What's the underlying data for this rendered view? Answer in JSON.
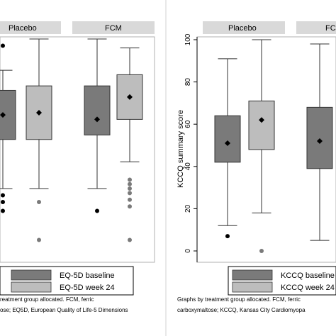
{
  "chart_data": [
    {
      "type": "box",
      "title": "",
      "ylabel": "",
      "panels": [
        "Placebo",
        "FCM"
      ],
      "series": [
        {
          "name": "EQ-5D baseline",
          "color": "#7a7a7a"
        },
        {
          "name": "EQ-5D week 24",
          "color": "#bdbdbd"
        }
      ],
      "boxes": [
        {
          "panel": "Placebo",
          "series": "EQ-5D baseline",
          "min": 0.33,
          "q1": 0.55,
          "median": 0.65,
          "q3": 0.77,
          "max": 0.86,
          "mean": 0.66,
          "outliers": [
            0.97,
            0.3,
            0.27,
            0.23
          ]
        },
        {
          "panel": "Placebo",
          "series": "EQ-5D week 24",
          "min": 0.33,
          "q1": 0.55,
          "median": 0.62,
          "q3": 0.79,
          "max": 1.0,
          "mean": 0.67,
          "outliers": [
            0.27,
            0.1
          ]
        },
        {
          "panel": "FCM",
          "series": "EQ-5D baseline",
          "min": 0.33,
          "q1": 0.57,
          "median": 0.67,
          "q3": 0.79,
          "max": 1.0,
          "mean": 0.64,
          "outliers": [
            0.23
          ]
        },
        {
          "panel": "FCM",
          "series": "EQ-5D week 24",
          "min": 0.45,
          "q1": 0.64,
          "median": 0.76,
          "q3": 0.84,
          "max": 0.96,
          "mean": 0.74,
          "outliers": [
            0.37,
            0.35,
            0.33,
            0.31,
            0.28,
            0.25,
            0.1
          ]
        }
      ],
      "legend": {
        "entries": [
          "EQ-5D baseline",
          "EQ-5D week 24"
        ],
        "position": "bottom"
      },
      "caption_lines": [
        "reatment group allocated. FCM, ferric",
        "ose; EQ5D, European Quality of Life-5 Dimensions"
      ]
    },
    {
      "type": "box",
      "title": "",
      "ylabel": "KCCQ summary score",
      "ylim": [
        0,
        100
      ],
      "yticks": [
        "0",
        "20",
        "40",
        "60",
        "80",
        "100"
      ],
      "panels": [
        "Placebo",
        "FCM"
      ],
      "series": [
        {
          "name": "KCCQ baseline",
          "color": "#7a7a7a"
        },
        {
          "name": "KCCQ week 24",
          "color": "#bdbdbd"
        }
      ],
      "boxes": [
        {
          "panel": "Placebo",
          "series": "KCCQ baseline",
          "min": 12,
          "q1": 42,
          "median": 53,
          "q3": 64,
          "max": 91,
          "mean": 51,
          "outliers": [
            7
          ]
        },
        {
          "panel": "Placebo",
          "series": "KCCQ week 24",
          "min": 18,
          "q1": 48,
          "median": 62,
          "q3": 71,
          "max": 100,
          "mean": 62,
          "outliers": [
            0
          ]
        },
        {
          "panel": "FCM",
          "series": "KCCQ baseline",
          "min": 5,
          "q1": 39,
          "median": 55,
          "q3": 68,
          "max": 98,
          "mean": 52,
          "outliers": []
        }
      ],
      "legend": {
        "entries": [
          "KCCQ baseline",
          "KCCQ week 24"
        ],
        "position": "bottom"
      },
      "caption_lines": [
        "Graphs by treatment group allocated. FCM, ferric",
        "carboxymaltose; KCCQ, Kansas City Cardiomyopa"
      ]
    }
  ],
  "left_panel_visible_labels": [
    "Placebo",
    "FCM"
  ],
  "right_panel_visible_labels": [
    "Placebo",
    "FCM"
  ]
}
